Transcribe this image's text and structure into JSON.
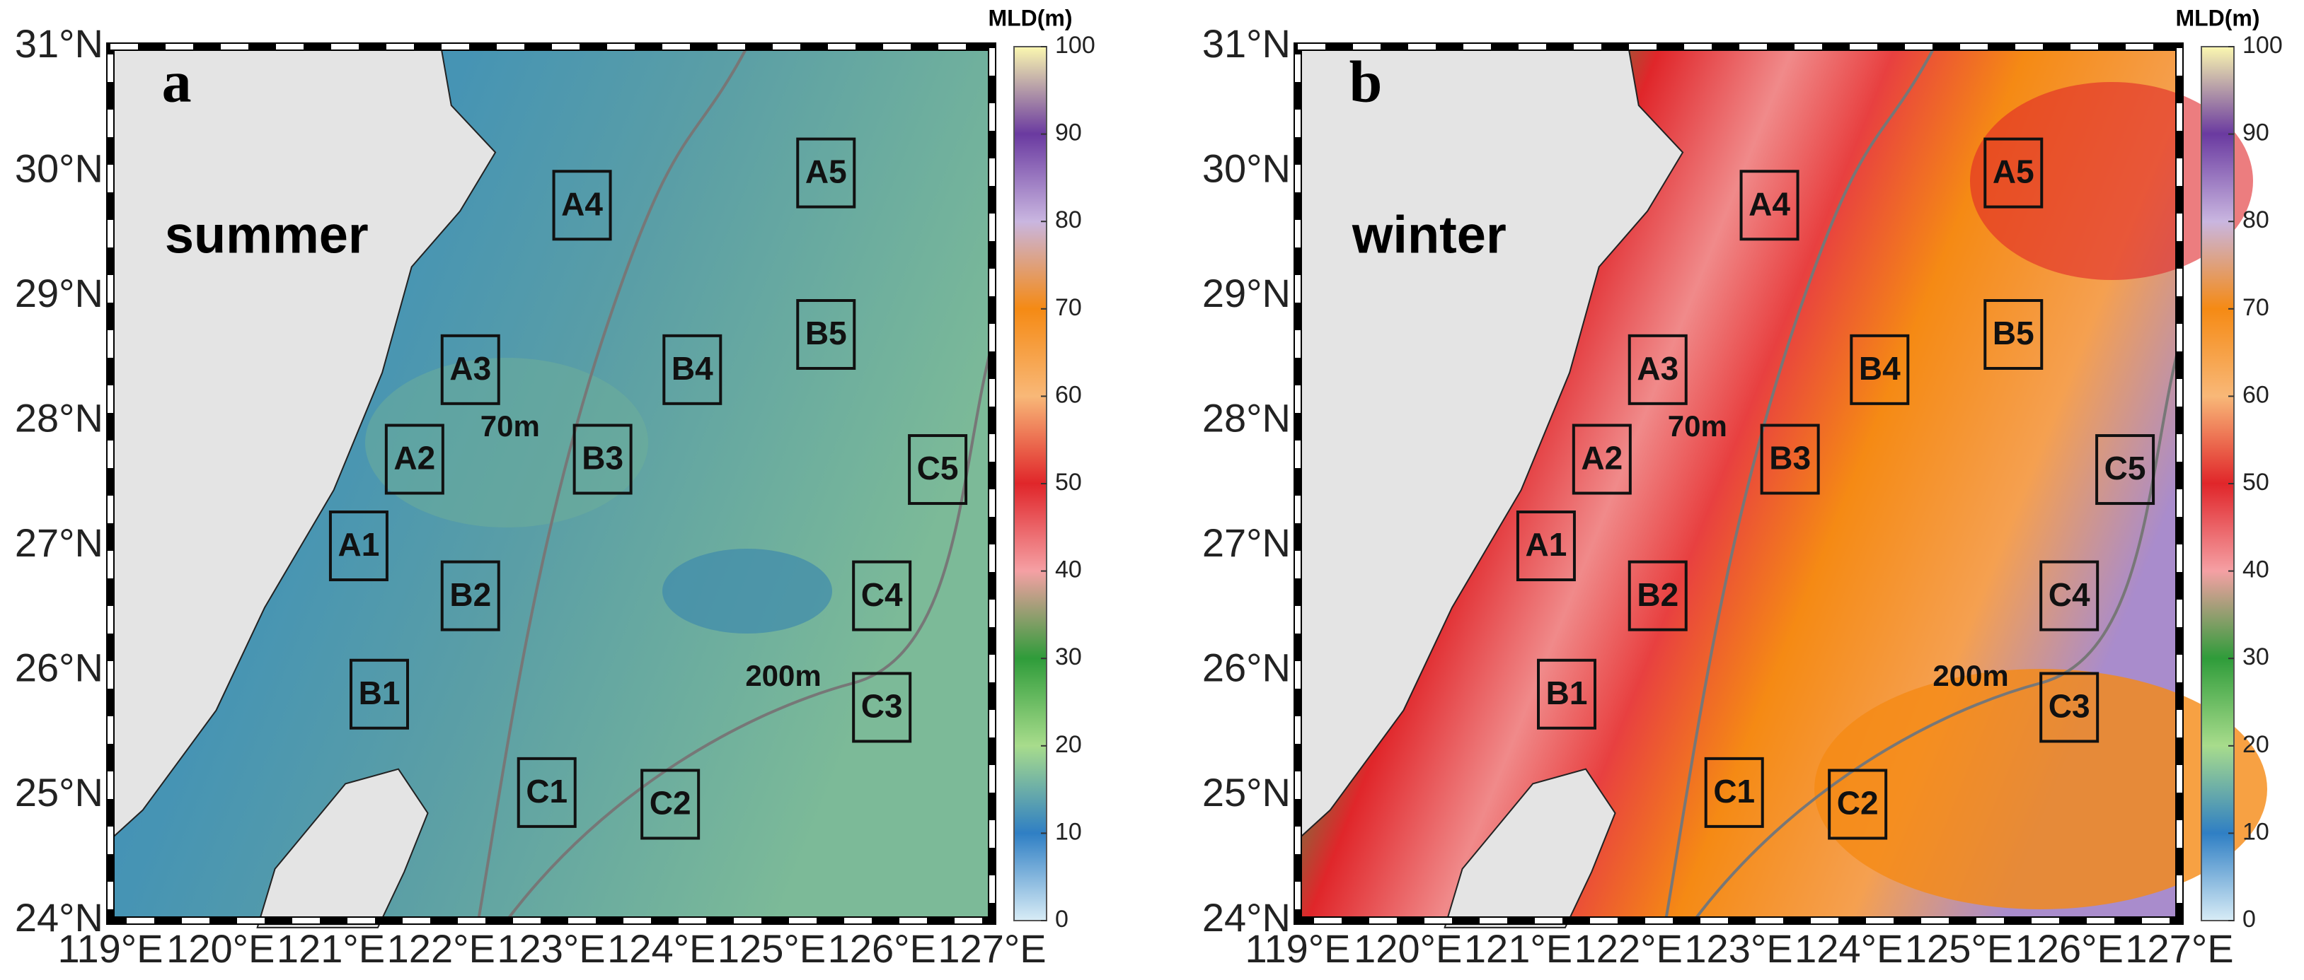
{
  "panels": [
    {
      "letter": "a",
      "season": "summer",
      "contours": [
        "70m",
        "200m"
      ],
      "stations": [
        "A1",
        "A2",
        "A3",
        "A4",
        "A5",
        "B1",
        "B2",
        "B3",
        "B4",
        "B5",
        "C1",
        "C2",
        "C3",
        "C4",
        "C5"
      ]
    },
    {
      "letter": "b",
      "season": "winter",
      "contours": [
        "70m",
        "200m"
      ],
      "stations": [
        "A1",
        "A2",
        "A3",
        "A4",
        "A5",
        "B1",
        "B2",
        "B3",
        "B4",
        "B5",
        "C1",
        "C2",
        "C3",
        "C4",
        "C5"
      ]
    }
  ],
  "x_ticks": [
    "119°E",
    "120°E",
    "121°E",
    "122°E",
    "123°E",
    "124°E",
    "125°E",
    "126°E",
    "127°E"
  ],
  "y_ticks": [
    "31°N",
    "30°N",
    "29°N",
    "28°N",
    "27°N",
    "26°N",
    "25°N",
    "24°N"
  ],
  "colorbar": {
    "title": "MLD(m)",
    "ticks": [
      0,
      10,
      20,
      30,
      40,
      50,
      60,
      70,
      80,
      90,
      100
    ]
  }
}
